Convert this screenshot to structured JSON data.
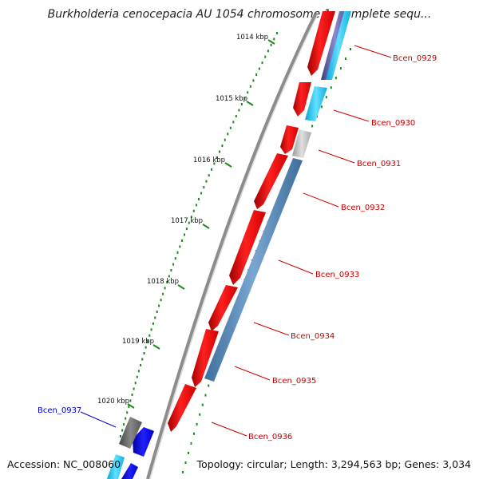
{
  "title": "Burkholderia cenocepacia AU 1054 chromosome 1, complete sequ...",
  "footer": {
    "accession": "Accession: NC_008060",
    "info": "Topology: circular; Length: 3,294,563 bp; Genes: 3,034"
  },
  "colors": {
    "forward_gene": "#ff0000",
    "reverse_gene": "#0000ff",
    "label_red": "#cc0000",
    "label_blue": "#0000cc",
    "backbone": "#8c8c8c",
    "ticks": "#1a8a1a",
    "steelblue_track": "#4f86b8",
    "cyan_track": "#22c6ee",
    "grey_track": "#b8b8b8"
  },
  "kbp_ticks": [
    "1014 kbp",
    "1015 kbp",
    "1016 kbp",
    "1017 kbp",
    "1018 kbp",
    "1019 kbp",
    "1020 kbp"
  ],
  "genes": [
    {
      "label": "Bcen_0929",
      "strand": "forward"
    },
    {
      "label": "Bcen_0930",
      "strand": "forward"
    },
    {
      "label": "Bcen_0931",
      "strand": "forward"
    },
    {
      "label": "Bcen_0932",
      "strand": "forward"
    },
    {
      "label": "Bcen_0933",
      "strand": "forward"
    },
    {
      "label": "Bcen_0934",
      "strand": "forward"
    },
    {
      "label": "Bcen_0935",
      "strand": "forward"
    },
    {
      "label": "Bcen_0936",
      "strand": "forward"
    },
    {
      "label": "Bcen_0937",
      "strand": "reverse"
    }
  ]
}
